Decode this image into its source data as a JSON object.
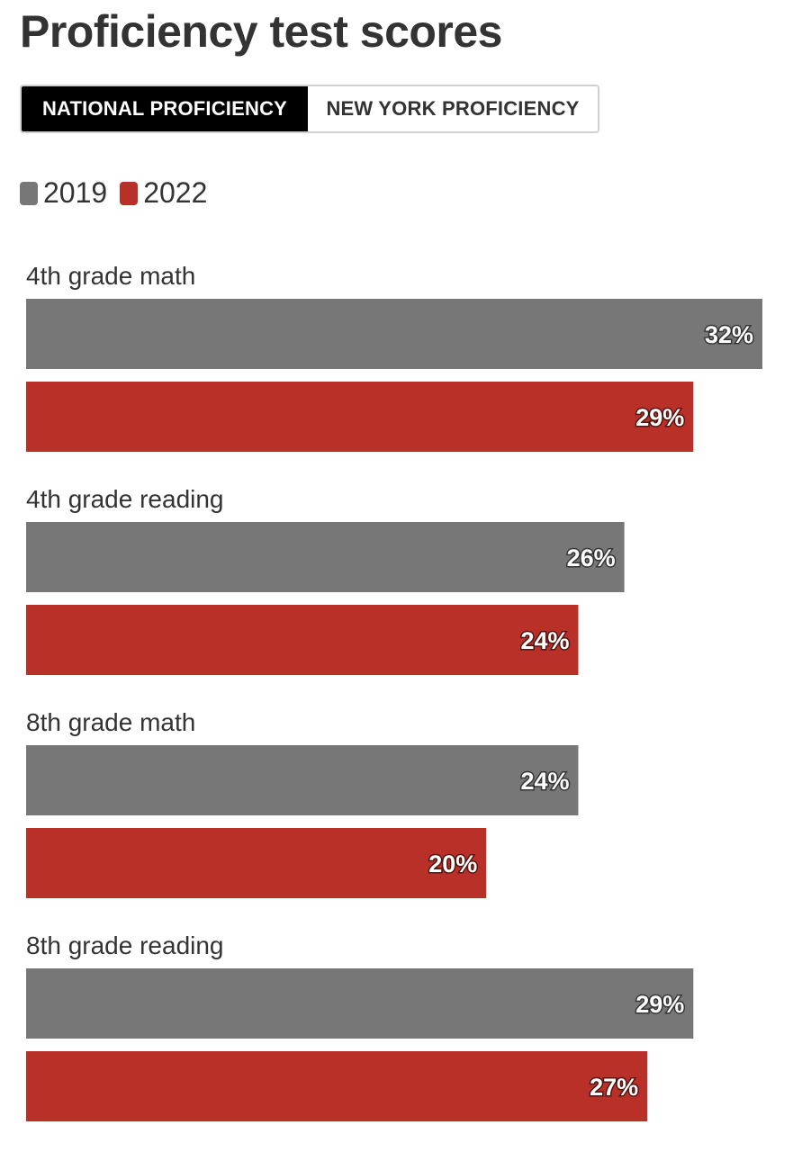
{
  "header": {
    "title": "Proficiency test scores"
  },
  "tabs": [
    {
      "label": "NATIONAL PROFICIENCY",
      "active": true
    },
    {
      "label": "NEW YORK PROFICIENCY",
      "active": false
    }
  ],
  "colors": {
    "series_2019": "#777777",
    "series_2022": "#b83027"
  },
  "chart_data": {
    "type": "bar",
    "orientation": "horizontal",
    "title": "Proficiency test scores",
    "categories": [
      "4th grade math",
      "4th grade reading",
      "8th grade math",
      "8th grade reading"
    ],
    "series": [
      {
        "name": "2019",
        "values": [
          32,
          26,
          24,
          29
        ],
        "labels": [
          "32%",
          "26%",
          "24%",
          "29%"
        ]
      },
      {
        "name": "2022",
        "values": [
          29,
          24,
          20,
          27
        ],
        "labels": [
          "29%",
          "24%",
          "20%",
          "27%"
        ]
      }
    ],
    "xlim": [
      0,
      32
    ],
    "unit": "%",
    "legend_position": "top-left",
    "grid": false
  }
}
